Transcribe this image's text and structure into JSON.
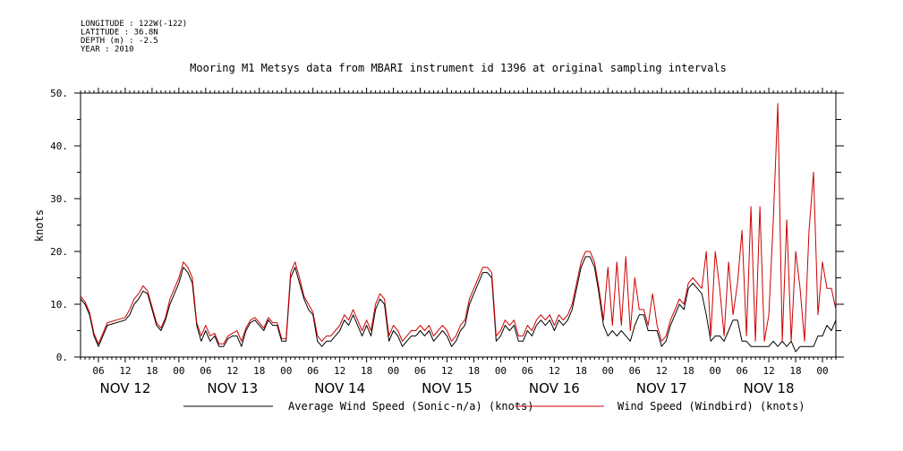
{
  "header": {
    "meta_lines": [
      "LONGITUDE : 122W(-122)",
      "LATITUDE : 36.8N",
      "DEPTH (m) : -2.5",
      "YEAR : 2010"
    ]
  },
  "chart_data": {
    "type": "line",
    "title": "Mooring M1 Metsys data from MBARI instrument id 1396 at original sampling intervals",
    "xlabel": "",
    "ylabel": "knots",
    "ylim": [
      0,
      50
    ],
    "yticks": [
      0,
      10,
      20,
      30,
      40,
      50
    ],
    "ytick_labels": [
      "0.",
      "10.",
      "20.",
      "30.",
      "40.",
      "50."
    ],
    "x_unit": "hours since NOV 12 00:00",
    "xlim": [
      2,
      171
    ],
    "x_hour_labels": [
      "06",
      "12",
      "18",
      "00",
      "06",
      "12",
      "18",
      "00",
      "06",
      "12",
      "18",
      "00",
      "06",
      "12",
      "18",
      "00",
      "06",
      "12",
      "18",
      "00",
      "06",
      "12",
      "18",
      "00",
      "06",
      "12",
      "18",
      "00"
    ],
    "x_hour_positions": [
      6,
      12,
      18,
      24,
      30,
      36,
      42,
      48,
      54,
      60,
      66,
      72,
      78,
      84,
      90,
      96,
      102,
      108,
      114,
      120,
      126,
      132,
      138,
      144,
      150,
      156,
      162,
      168
    ],
    "day_labels": [
      "NOV 12",
      "NOV 13",
      "NOV 14",
      "NOV 15",
      "NOV 16",
      "NOV 17",
      "NOV 18"
    ],
    "day_label_centers": [
      12,
      36,
      60,
      84,
      108,
      132,
      156
    ],
    "grid": false,
    "legend_position": "bottom",
    "series": [
      {
        "name": "Average Wind Speed (Sonic-n/a) (knots)",
        "color": "#000000",
        "x": [
          2,
          3,
          4,
          5,
          6,
          8,
          10,
          12,
          13,
          14,
          15,
          16,
          17,
          18,
          19,
          20,
          21,
          22,
          23,
          24,
          25,
          26,
          27,
          28,
          29,
          30,
          31,
          32,
          33,
          34,
          35,
          36,
          37,
          38,
          39,
          40,
          41,
          42,
          43,
          44,
          45,
          46,
          47,
          48,
          49,
          50,
          51,
          52,
          53,
          54,
          55,
          56,
          57,
          58,
          59,
          60,
          61,
          62,
          63,
          64,
          65,
          66,
          67,
          68,
          69,
          70,
          71,
          72,
          73,
          74,
          75,
          76,
          77,
          78,
          79,
          80,
          81,
          82,
          83,
          84,
          85,
          86,
          87,
          88,
          89,
          90,
          91,
          92,
          93,
          94,
          95,
          96,
          97,
          98,
          99,
          100,
          101,
          102,
          103,
          104,
          105,
          106,
          107,
          108,
          109,
          110,
          111,
          112,
          113,
          114,
          115,
          116,
          117,
          118,
          119,
          120,
          121,
          122,
          123,
          124,
          125,
          126,
          127,
          128,
          129,
          130,
          131,
          132,
          133,
          134,
          135,
          136,
          137,
          138,
          139,
          140,
          141,
          142,
          143,
          144,
          145,
          146,
          147,
          148,
          149,
          150,
          151,
          152,
          153,
          154,
          155,
          156,
          157,
          158,
          159,
          160,
          161,
          162,
          163,
          164,
          165,
          166,
          167,
          168,
          169,
          170,
          171
        ],
        "values": [
          11,
          10,
          8,
          4,
          2,
          6,
          6.5,
          7,
          8,
          10,
          11,
          12.5,
          12,
          9,
          6,
          5,
          7,
          10,
          12,
          14,
          17,
          16,
          14,
          6,
          3,
          5,
          3,
          4,
          2,
          2,
          3.5,
          4,
          4,
          2,
          5,
          6.5,
          7,
          6,
          5,
          7,
          6,
          6,
          3,
          3,
          15,
          17,
          14,
          11,
          9,
          8,
          3,
          2,
          3,
          3,
          4,
          5,
          7,
          6,
          8,
          6,
          4,
          6,
          4,
          9,
          11,
          10,
          3,
          5,
          4,
          2,
          3,
          4,
          4,
          5,
          4,
          5,
          3,
          4,
          5,
          4,
          2,
          3,
          5,
          6,
          10,
          12,
          14,
          16,
          16,
          15,
          3,
          4,
          6,
          5,
          6,
          3,
          3,
          5,
          4,
          6,
          7,
          6,
          7,
          5,
          7,
          6,
          7,
          9,
          13,
          17,
          19,
          19,
          17,
          12,
          6,
          4,
          5,
          4,
          5,
          4,
          3,
          6,
          8,
          8,
          5,
          5,
          5,
          2,
          3,
          6,
          8,
          10,
          9,
          13,
          14,
          13,
          12,
          8,
          3,
          4,
          4,
          3,
          5,
          7,
          7,
          3,
          3,
          2,
          2,
          2,
          2,
          2,
          3,
          2,
          3,
          2,
          3,
          1,
          2,
          2,
          2,
          2,
          4,
          4,
          6,
          5,
          7
        ]
      },
      {
        "name": "Wind Speed (Windbird) (knots)",
        "color": "#cc0000",
        "x": [
          2,
          3,
          4,
          5,
          6,
          8,
          10,
          12,
          13,
          14,
          15,
          16,
          17,
          18,
          19,
          20,
          21,
          22,
          23,
          24,
          25,
          26,
          27,
          28,
          29,
          30,
          31,
          32,
          33,
          34,
          35,
          36,
          37,
          38,
          39,
          40,
          41,
          42,
          43,
          44,
          45,
          46,
          47,
          48,
          49,
          50,
          51,
          52,
          53,
          54,
          55,
          56,
          57,
          58,
          59,
          60,
          61,
          62,
          63,
          64,
          65,
          66,
          67,
          68,
          69,
          70,
          71,
          72,
          73,
          74,
          75,
          76,
          77,
          78,
          79,
          80,
          81,
          82,
          83,
          84,
          85,
          86,
          87,
          88,
          89,
          90,
          91,
          92,
          93,
          94,
          95,
          96,
          97,
          98,
          99,
          100,
          101,
          102,
          103,
          104,
          105,
          106,
          107,
          108,
          109,
          110,
          111,
          112,
          113,
          114,
          115,
          116,
          117,
          118,
          119,
          120,
          121,
          122,
          123,
          124,
          125,
          126,
          127,
          128,
          129,
          130,
          131,
          132,
          133,
          134,
          135,
          136,
          137,
          138,
          139,
          140,
          141,
          142,
          143,
          144,
          145,
          146,
          147,
          148,
          149,
          150,
          151,
          152,
          153,
          154,
          155,
          156,
          157,
          158,
          159,
          160,
          161,
          162,
          163,
          164,
          165,
          166,
          167,
          168,
          169,
          170,
          171
        ],
        "values": [
          11.5,
          10.5,
          8.5,
          4.5,
          2.5,
          6.5,
          7,
          7.5,
          9,
          11,
          12,
          13.5,
          12.5,
          9.5,
          6.5,
          5.5,
          7.5,
          11,
          13,
          15,
          18,
          17,
          15,
          6.5,
          4,
          6,
          4,
          4.5,
          2.5,
          2.5,
          4,
          4.5,
          5,
          3,
          5.5,
          7,
          7.5,
          6.5,
          5.5,
          7.5,
          6.5,
          6.5,
          3.5,
          3.5,
          16,
          18,
          15,
          11.5,
          10,
          8.5,
          4,
          3,
          4,
          4,
          5,
          6,
          8,
          7,
          9,
          7,
          5,
          7,
          5,
          10,
          12,
          11,
          4,
          6,
          5,
          3,
          4,
          5,
          5,
          6,
          5,
          6,
          4,
          5,
          6,
          5,
          3,
          4,
          6,
          7,
          11,
          13,
          15,
          17,
          17,
          16,
          4,
          5,
          7,
          6,
          7,
          4,
          4,
          6,
          5,
          7,
          8,
          7,
          8,
          6,
          8,
          7,
          8,
          10,
          14,
          18,
          20,
          20,
          18,
          13,
          7,
          17,
          6,
          18,
          6,
          19,
          5,
          15,
          9,
          9,
          6,
          12,
          6,
          3,
          4,
          7,
          9,
          11,
          10,
          14,
          15,
          14,
          13,
          20,
          4,
          20,
          13,
          4,
          18,
          8,
          14,
          24,
          4,
          28.5,
          3,
          28.5,
          3,
          8,
          26,
          48,
          3,
          26,
          3,
          20,
          13,
          3,
          24,
          35,
          8,
          18,
          13,
          13,
          9
        ]
      }
    ]
  }
}
